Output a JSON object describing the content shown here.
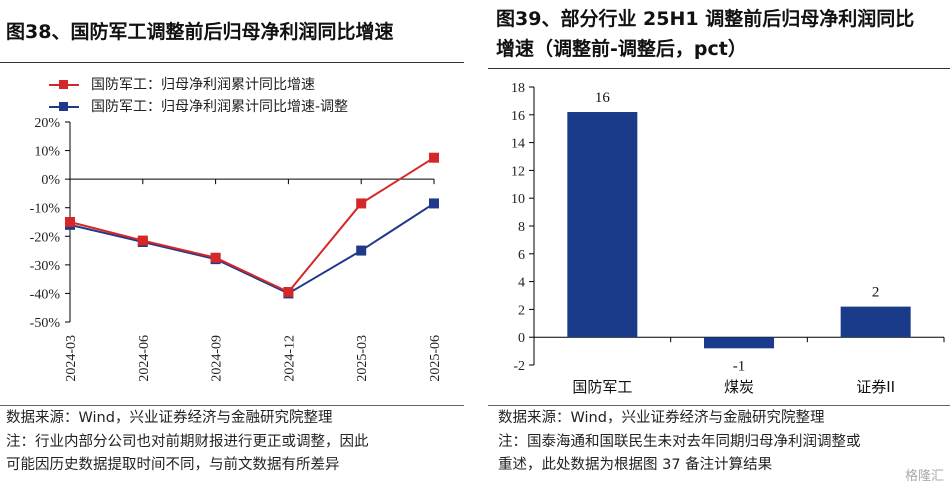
{
  "left": {
    "title": "图38、国防军工调整前后归母净利润同比增速",
    "source": "数据来源：Wind，兴业证券经济与金融研究院整理",
    "note_line1": "注：行业内部分公司也对前期财报进行更正或调整，因此",
    "note_line2": "可能因历史数据提取时间不同，与前文数据有所差异"
  },
  "right": {
    "title_line1": "图39、部分行业 25H1 调整前后归母净利润同比",
    "title_line2": "增速（调整前-调整后，pct）",
    "source": "数据来源：Wind，兴业证券经济与金融研究院整理",
    "note_line1": "注：国泰海通和国联民生未对去年同期归母净利润调整或",
    "note_line2": "重述，此处数据为根据图 37 备注计算结果"
  },
  "watermark": "格隆汇",
  "chart_data": [
    {
      "type": "line",
      "categories": [
        "2024-03",
        "2024-06",
        "2024-09",
        "2024-12",
        "2025-03",
        "2025-06"
      ],
      "series": [
        {
          "name": "国防军工：归母净利润累计同比增速",
          "values": [
            -15,
            -21.5,
            -27.5,
            -39.5,
            -8.5,
            7.5
          ],
          "color": "#d62728"
        },
        {
          "name": "国防军工：归母净利润累计同比增速-调整",
          "values": [
            -16,
            -22,
            -28,
            -40,
            -25,
            -8.5
          ],
          "color": "#1f3a8a"
        }
      ],
      "yticks": [
        "20%",
        "10%",
        "0%",
        "-10%",
        "-20%",
        "-30%",
        "-40%",
        "-50%"
      ],
      "ylim": [
        -50,
        20
      ],
      "legend": "top-left"
    },
    {
      "type": "bar",
      "categories": [
        "国防军工",
        "煤炭",
        "证券II"
      ],
      "values": [
        16.2,
        -0.8,
        2.2
      ],
      "data_labels": [
        "16",
        "-1",
        "2"
      ],
      "yticks": [
        "18",
        "16",
        "14",
        "12",
        "10",
        "8",
        "6",
        "4",
        "2",
        "0",
        "-2"
      ],
      "ylim": [
        -2,
        18
      ],
      "color": "#1a3a8a"
    }
  ]
}
